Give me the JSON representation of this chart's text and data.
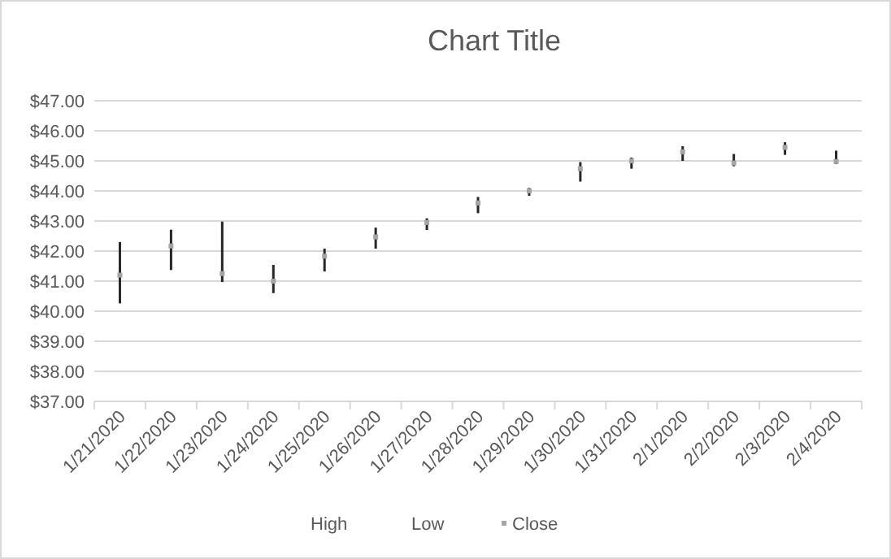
{
  "chart_data": {
    "type": "scatter",
    "title": "Chart Title",
    "categories": [
      "1/21/2020",
      "1/22/2020",
      "1/23/2020",
      "1/24/2020",
      "1/25/2020",
      "1/26/2020",
      "1/27/2020",
      "1/28/2020",
      "1/29/2020",
      "1/30/2020",
      "1/31/2020",
      "2/1/2020",
      "2/2/2020",
      "2/3/2020",
      "2/4/2020"
    ],
    "series": [
      {
        "name": "Close",
        "color": "#a5a5a5",
        "marker": "square",
        "values": [
          41.2,
          42.17,
          41.25,
          41.0,
          41.83,
          42.47,
          42.95,
          43.6,
          44.0,
          44.74,
          45.0,
          45.3,
          44.93,
          45.45,
          44.98
        ],
        "errors": [
          [
            40.26,
            42.3
          ],
          [
            41.37,
            42.71
          ],
          [
            40.97,
            42.98
          ],
          [
            40.6,
            41.54
          ],
          [
            41.32,
            42.08
          ],
          [
            42.08,
            42.78
          ],
          [
            42.7,
            43.09
          ],
          [
            43.26,
            43.8
          ],
          [
            43.84,
            44.1
          ],
          [
            44.31,
            44.96
          ],
          [
            44.74,
            45.11
          ],
          [
            45.0,
            45.49
          ],
          [
            44.82,
            45.23
          ],
          [
            45.2,
            45.62
          ],
          [
            44.89,
            45.34
          ]
        ]
      }
    ],
    "annotations": [
      "High",
      "Low"
    ],
    "ylim": [
      37,
      47
    ],
    "yticks": [
      {
        "value": 37,
        "label": "$37.00"
      },
      {
        "value": 38,
        "label": "$38.00"
      },
      {
        "value": 39,
        "label": "$39.00"
      },
      {
        "value": 40,
        "label": "$40.00"
      },
      {
        "value": 41,
        "label": "$41.00"
      },
      {
        "value": 42,
        "label": "$42.00"
      },
      {
        "value": 43,
        "label": "$43.00"
      },
      {
        "value": 44,
        "label": "$44.00"
      },
      {
        "value": 45,
        "label": "$45.00"
      },
      {
        "value": 46,
        "label": "$46.00"
      },
      {
        "value": 47,
        "label": "$47.00"
      }
    ],
    "grid": "y",
    "legend": "bottom"
  }
}
